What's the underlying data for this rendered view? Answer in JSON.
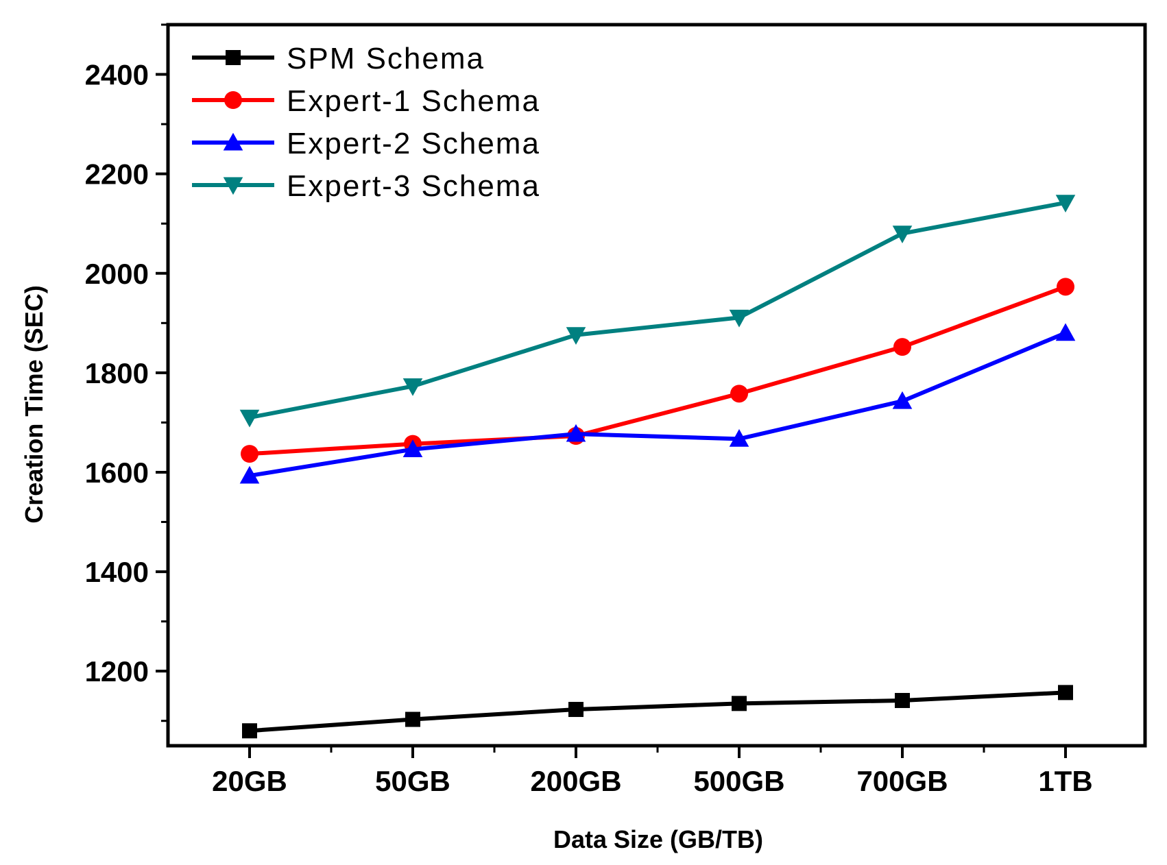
{
  "chart_data": {
    "type": "line",
    "title": "",
    "xlabel": "Data Size (GB/TB)",
    "ylabel": "Creation Time (SEC)",
    "categories": [
      "20GB",
      "50GB",
      "200GB",
      "500GB",
      "700GB",
      "1TB"
    ],
    "ylim": [
      1050,
      2500
    ],
    "yticks": [
      1200,
      1400,
      1600,
      1800,
      2000,
      2200,
      2400
    ],
    "grid": false,
    "legend_position": "top-left",
    "series": [
      {
        "name": "SPM Schema",
        "color": "#000000",
        "marker": "square",
        "values": [
          1080,
          1103,
          1123,
          1135,
          1141,
          1157
        ]
      },
      {
        "name": "Expert-1 Schema",
        "color": "#ff0000",
        "marker": "circle",
        "values": [
          1637,
          1657,
          1673,
          1758,
          1852,
          1973
        ]
      },
      {
        "name": "Expert-2 Schema",
        "color": "#0000ff",
        "marker": "triangle-up",
        "values": [
          1593,
          1646,
          1677,
          1667,
          1743,
          1880
        ]
      },
      {
        "name": "Expert-3 Schema",
        "color": "#008080",
        "marker": "triangle-down",
        "values": [
          1710,
          1773,
          1876,
          1911,
          2080,
          2142
        ]
      }
    ]
  }
}
